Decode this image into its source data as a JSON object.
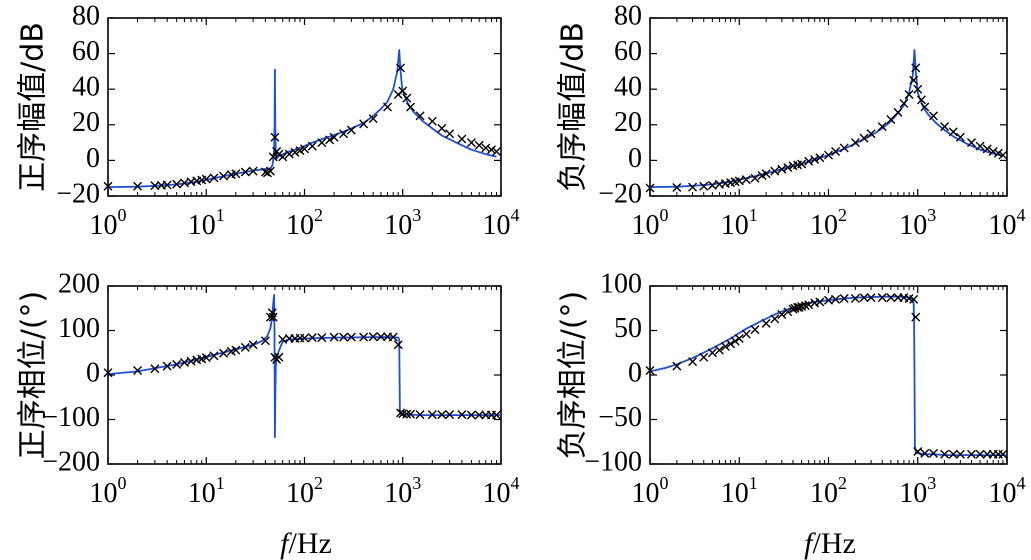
{
  "figure": {
    "xlabel_italic": "f",
    "xlabel_rest": "/Hz"
  },
  "colors": {
    "model_line": "#1f4fd8",
    "marker": "#000000"
  },
  "chart_data": [
    {
      "id": "pos-mag",
      "type": "line",
      "ylabel": "正序幅值/dB",
      "xscale": "log",
      "xlim": [
        1,
        10000
      ],
      "ylim": [
        -20,
        80
      ],
      "xticks": [
        1,
        10,
        100,
        1000,
        10000
      ],
      "xtick_labels": [
        {
          "base": "10",
          "exp": "0"
        },
        {
          "base": "10",
          "exp": "1"
        },
        {
          "base": "10",
          "exp": "2"
        },
        {
          "base": "10",
          "exp": "3"
        },
        {
          "base": "10",
          "exp": "4"
        }
      ],
      "yticks": [
        -20,
        0,
        20,
        40,
        60,
        80
      ],
      "ytick_labels": [
        "−20",
        "0",
        "20",
        "40",
        "60",
        "80"
      ],
      "xlabel": "",
      "series": [
        {
          "name": "model",
          "style": "line",
          "x": [
            1,
            2,
            3,
            5,
            8,
            12,
            18,
            25,
            32,
            38,
            42,
            45,
            47,
            48,
            49,
            49.6,
            50,
            50.4,
            51,
            52,
            55,
            60,
            70,
            90,
            120,
            160,
            220,
            300,
            400,
            500,
            600,
            700,
            800,
            880,
            920,
            950,
            980,
            1000,
            1050,
            1150,
            1300,
            1600,
            2000,
            2500,
            3500,
            5000,
            7000,
            9000
          ],
          "y": [
            -15,
            -14.8,
            -14.3,
            -13.5,
            -12,
            -10,
            -8,
            -6.5,
            -5.5,
            -5,
            -4.8,
            -4.5,
            -3,
            0,
            6,
            20,
            51,
            18,
            4,
            1,
            2.5,
            3.5,
            5,
            7,
            10,
            12.5,
            15,
            18,
            21,
            25,
            29,
            33,
            40,
            50,
            62,
            50,
            42,
            39,
            36,
            31,
            27,
            22,
            18,
            14,
            10,
            6,
            3.5,
            2
          ]
        },
        {
          "name": "measured",
          "style": "marker",
          "x": [
            1,
            2,
            3,
            3.5,
            4,
            5,
            6,
            7,
            8,
            9,
            10,
            12,
            15,
            18,
            20,
            25,
            30,
            40,
            42,
            45,
            48,
            50,
            52,
            55,
            60,
            70,
            80,
            90,
            100,
            120,
            150,
            180,
            200,
            250,
            300,
            400,
            500,
            700,
            900,
            950,
            1000,
            1100,
            1200,
            1500,
            2000,
            2500,
            3000,
            4000,
            5000,
            6000,
            7000,
            8000,
            9000
          ],
          "y": [
            -14.5,
            -14.5,
            -14.2,
            -14,
            -13.8,
            -13.3,
            -12.6,
            -12,
            -11.5,
            -11,
            -10.5,
            -9.8,
            -8.8,
            -8,
            -7.5,
            -6.5,
            -6,
            -6.5,
            -7,
            -6,
            2,
            13,
            5,
            3.5,
            2,
            3.5,
            4.5,
            5.5,
            6.5,
            8,
            10,
            11.5,
            13,
            15,
            17,
            20.5,
            23.5,
            30,
            37,
            52,
            39,
            35,
            30,
            25,
            22,
            18,
            15,
            12,
            10,
            8.5,
            7,
            6,
            5
          ]
        }
      ]
    },
    {
      "id": "neg-mag",
      "type": "line",
      "ylabel": "负序幅值/dB",
      "xscale": "log",
      "xlim": [
        1,
        10000
      ],
      "ylim": [
        -20,
        80
      ],
      "xticks": [
        1,
        10,
        100,
        1000,
        10000
      ],
      "xtick_labels": [
        {
          "base": "10",
          "exp": "0"
        },
        {
          "base": "10",
          "exp": "1"
        },
        {
          "base": "10",
          "exp": "2"
        },
        {
          "base": "10",
          "exp": "3"
        },
        {
          "base": "10",
          "exp": "4"
        }
      ],
      "yticks": [
        -20,
        0,
        20,
        40,
        60,
        80
      ],
      "ytick_labels": [
        "−20",
        "0",
        "20",
        "40",
        "60",
        "80"
      ],
      "xlabel": "",
      "series": [
        {
          "name": "model",
          "style": "line",
          "x": [
            1,
            2,
            3,
            5,
            8,
            12,
            18,
            25,
            35,
            50,
            70,
            100,
            150,
            200,
            300,
            400,
            500,
            600,
            700,
            800,
            880,
            920,
            950,
            980,
            1000,
            1050,
            1150,
            1300,
            1600,
            2000,
            2500,
            3500,
            5000,
            7000,
            9000
          ],
          "y": [
            -15,
            -14.8,
            -14.3,
            -13.5,
            -12,
            -10,
            -8,
            -6,
            -4,
            -2,
            0.5,
            3,
            6.5,
            9.5,
            14,
            18,
            22,
            26.5,
            31,
            38,
            48,
            62,
            50,
            42,
            38,
            35,
            30,
            26,
            21,
            17,
            13.5,
            9.5,
            6,
            3.8,
            2.5
          ]
        },
        {
          "name": "measured",
          "style": "marker",
          "x": [
            1,
            2,
            3,
            4,
            5,
            6,
            7,
            8,
            9,
            10,
            12,
            15,
            18,
            20,
            25,
            30,
            35,
            40,
            45,
            50,
            60,
            70,
            80,
            100,
            120,
            150,
            200,
            250,
            300,
            400,
            500,
            600,
            700,
            800,
            900,
            950,
            1000,
            1100,
            1200,
            1500,
            2000,
            2500,
            3000,
            4000,
            5000,
            6000,
            7000,
            8000,
            9000
          ],
          "y": [
            -15.5,
            -15.2,
            -15,
            -14.5,
            -14,
            -13.5,
            -13,
            -12.5,
            -12,
            -11.5,
            -10.8,
            -10,
            -8.5,
            -7.5,
            -6,
            -5,
            -4,
            -3,
            -2.5,
            -2,
            -0.5,
            0.5,
            1.5,
            3,
            5,
            7,
            10,
            12.5,
            15,
            19,
            23,
            27,
            32,
            37,
            45,
            52,
            40,
            34,
            30,
            25,
            19,
            16,
            13,
            10,
            8,
            6.5,
            5,
            4,
            3
          ]
        }
      ]
    },
    {
      "id": "pos-phase",
      "type": "line",
      "ylabel": "正序相位/(°)",
      "xscale": "log",
      "xlim": [
        1,
        10000
      ],
      "ylim": [
        -200,
        200
      ],
      "xticks": [
        1,
        10,
        100,
        1000,
        10000
      ],
      "xtick_labels": [
        {
          "base": "10",
          "exp": "0"
        },
        {
          "base": "10",
          "exp": "1"
        },
        {
          "base": "10",
          "exp": "2"
        },
        {
          "base": "10",
          "exp": "3"
        },
        {
          "base": "10",
          "exp": "4"
        }
      ],
      "yticks": [
        -200,
        -100,
        0,
        100,
        200
      ],
      "ytick_labels": [
        "−200",
        "−100",
        "0",
        "100",
        "200"
      ],
      "xlabel": "f/Hz",
      "series": [
        {
          "name": "model",
          "style": "line",
          "x": [
            1,
            2,
            3,
            5,
            8,
            12,
            18,
            25,
            32,
            38,
            42,
            45,
            47,
            48,
            49,
            49.5,
            50,
            50.5,
            51,
            52,
            55,
            60,
            70,
            100,
            200,
            500,
            800,
            900,
            920,
            935,
            950,
            1000,
            1200,
            1500,
            2000,
            3000,
            5000,
            10000
          ],
          "y": [
            2,
            8,
            15,
            24,
            35,
            45,
            55,
            63,
            70,
            78,
            88,
            105,
            130,
            160,
            180,
            100,
            -140,
            -50,
            20,
            40,
            55,
            75,
            80,
            82,
            84,
            85,
            85,
            84,
            80,
            -80,
            -88,
            -88,
            -89,
            -90,
            -90,
            -90,
            -90,
            -90
          ]
        },
        {
          "name": "measured",
          "style": "marker",
          "x": [
            1,
            2,
            3,
            4,
            5,
            6,
            7,
            8,
            9,
            10,
            12,
            15,
            18,
            20,
            25,
            30,
            40,
            45,
            47,
            48,
            50,
            52,
            55,
            60,
            70,
            80,
            90,
            100,
            120,
            150,
            200,
            250,
            300,
            400,
            500,
            600,
            700,
            800,
            900,
            950,
            1000,
            1100,
            1200,
            1500,
            2000,
            2500,
            3000,
            4000,
            5000,
            6000,
            7000,
            8000,
            9000
          ],
          "y": [
            5,
            10,
            14,
            20,
            24,
            28,
            31,
            34,
            36,
            39,
            43,
            49,
            53,
            56,
            62,
            68,
            77,
            130,
            140,
            130,
            40,
            35,
            40,
            80,
            82,
            82,
            83,
            83,
            84,
            84,
            85,
            85,
            85,
            85,
            86,
            86,
            86,
            85,
            68,
            -85,
            -87,
            -88,
            -88,
            -89,
            -89,
            -89,
            -89,
            -89,
            -90,
            -90,
            -90,
            -90,
            -90
          ]
        }
      ]
    },
    {
      "id": "neg-phase",
      "type": "line",
      "ylabel": "负序相位/(°)",
      "xscale": "log",
      "xlim": [
        1,
        10000
      ],
      "ylim": [
        -100,
        100
      ],
      "xticks": [
        1,
        10,
        100,
        1000,
        10000
      ],
      "xtick_labels": [
        {
          "base": "10",
          "exp": "0"
        },
        {
          "base": "10",
          "exp": "1"
        },
        {
          "base": "10",
          "exp": "2"
        },
        {
          "base": "10",
          "exp": "3"
        },
        {
          "base": "10",
          "exp": "4"
        }
      ],
      "yticks": [
        -100,
        -50,
        0,
        50,
        100
      ],
      "ytick_labels": [
        "−100",
        "−50",
        "0",
        "50",
        "100"
      ],
      "xlabel": "f/Hz",
      "series": [
        {
          "name": "model",
          "style": "line",
          "x": [
            1,
            1.5,
            2,
            3,
            5,
            8,
            12,
            18,
            25,
            35,
            50,
            70,
            100,
            150,
            200,
            300,
            400,
            500,
            600,
            700,
            800,
            850,
            880,
            900,
            910,
            920,
            930,
            950,
            1000,
            1200,
            1500,
            2000,
            3000,
            5000,
            10000
          ],
          "y": [
            4,
            8,
            12,
            19,
            30,
            41,
            52,
            61,
            68,
            74,
            79,
            82,
            84,
            86,
            87,
            87.5,
            88,
            88,
            88,
            87.5,
            87,
            86,
            84,
            80,
            60,
            0,
            -80,
            -87,
            -88,
            -89,
            -89,
            -90,
            -90,
            -90,
            -90
          ]
        },
        {
          "name": "measured",
          "style": "marker",
          "x": [
            1,
            2,
            3,
            4,
            5,
            6,
            7,
            8,
            9,
            10,
            12,
            15,
            20,
            25,
            30,
            35,
            40,
            42,
            45,
            47,
            50,
            55,
            60,
            70,
            80,
            100,
            120,
            150,
            200,
            250,
            300,
            400,
            500,
            600,
            700,
            800,
            900,
            950,
            1000,
            1200,
            1500,
            2000,
            2500,
            3000,
            4000,
            5000,
            6000,
            7000,
            8000,
            9000
          ],
          "y": [
            5,
            10,
            15,
            20,
            25,
            28,
            32,
            35,
            38,
            41,
            46,
            51,
            58,
            63,
            68,
            71,
            74,
            75,
            76,
            76,
            77,
            78,
            79,
            81,
            82,
            84,
            85,
            86,
            86,
            87,
            87,
            87,
            87,
            87,
            87,
            86,
            85,
            65,
            -86,
            -88,
            -88,
            -89,
            -89,
            -89,
            -89,
            -89,
            -89,
            -89,
            -89,
            -89
          ]
        }
      ]
    }
  ]
}
